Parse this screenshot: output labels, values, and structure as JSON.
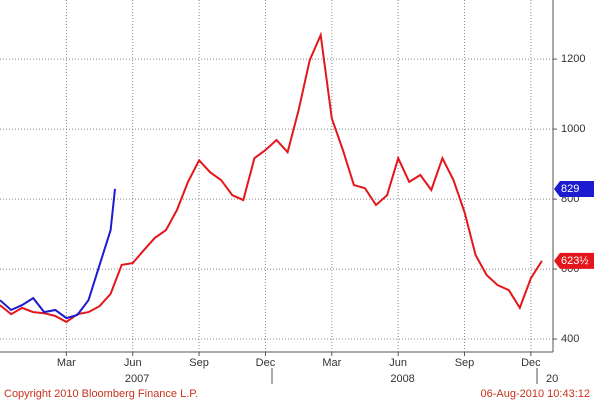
{
  "chart_data": {
    "type": "line",
    "xlim": [
      -1,
      24
    ],
    "ylim": [
      363,
      1369
    ],
    "xticks": [
      {
        "value": 2,
        "label": "Mar"
      },
      {
        "value": 5,
        "label": "Jun"
      },
      {
        "value": 8,
        "label": "Sep"
      },
      {
        "value": 11,
        "label": "Dec"
      },
      {
        "value": 14,
        "label": "Mar"
      },
      {
        "value": 17,
        "label": "Jun"
      },
      {
        "value": 20,
        "label": "Sep"
      },
      {
        "value": 23,
        "label": "Dec"
      }
    ],
    "year_labels": [
      {
        "value": 5.2,
        "label": "2007"
      },
      {
        "value": 17.2,
        "label": "2008"
      },
      {
        "value": 23.96,
        "label": "20"
      }
    ],
    "yticks": [
      400,
      600,
      800,
      1000,
      1200
    ],
    "grid": true,
    "series": [
      {
        "color": "#e3161b",
        "x": [
          -1,
          -0.5,
          0,
          0.5,
          1,
          1.5,
          2,
          2.5,
          3,
          3.5,
          4,
          4.5,
          5,
          5.5,
          6,
          6.5,
          7,
          7.5,
          8,
          8.5,
          9,
          9.5,
          10,
          10.5,
          11,
          11.5,
          12,
          12.5,
          13,
          13.5,
          14,
          14.5,
          15,
          15.5,
          16,
          16.5,
          17,
          17.5,
          18,
          18.5,
          19,
          19.5,
          20,
          20.5,
          21,
          21.5,
          22,
          22.5,
          23,
          23.5
        ],
        "values": [
          497,
          471,
          489,
          477,
          474,
          466,
          449,
          471,
          477,
          494,
          529,
          612,
          617,
          654,
          689,
          711,
          769,
          849,
          911,
          877,
          854,
          811,
          797,
          917,
          940,
          969,
          934,
          1054,
          1197,
          1269,
          1031,
          940,
          840,
          831,
          783,
          811,
          917,
          849,
          869,
          826,
          917,
          854,
          763,
          640,
          583,
          554,
          540,
          489,
          574,
          623.5
        ],
        "value_labels": [
          null,
          null,
          null,
          null,
          null,
          null,
          null,
          null,
          null,
          null,
          null,
          null,
          null,
          null,
          null,
          null,
          null,
          null,
          null,
          null,
          null,
          null,
          null,
          null,
          null,
          null,
          null,
          null,
          null,
          null,
          null,
          null,
          null,
          null,
          null,
          null,
          null,
          null,
          null,
          null,
          null,
          null,
          null,
          null,
          null,
          null,
          null,
          null,
          null,
          "623½"
        ]
      },
      {
        "color": "#1b1bd0",
        "x": [
          -1,
          -0.5,
          0,
          0.5,
          1,
          1.5,
          2,
          2.5,
          3,
          3.5,
          4,
          4.2
        ],
        "values": [
          511,
          483,
          497,
          517,
          477,
          483,
          460,
          469,
          511,
          611,
          711,
          829
        ]
      }
    ],
    "footer_left": "Copyright 2010 Bloomberg Finance L.P.",
    "footer_right": "06-Aug-2010 10:43:12"
  }
}
